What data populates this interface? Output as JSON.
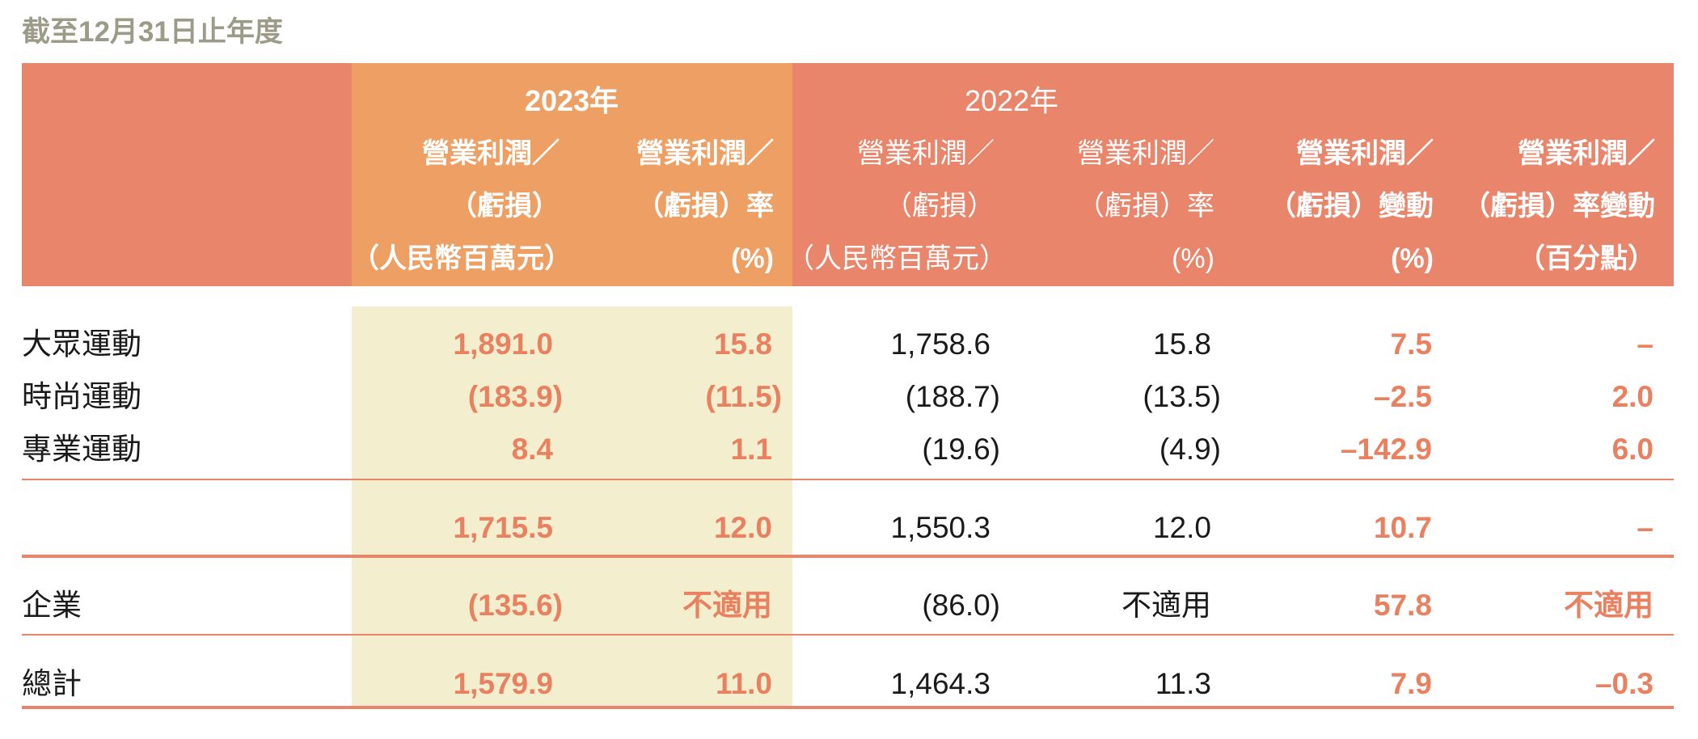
{
  "title": "截至12月31日止年度",
  "colors": {
    "header": "#E8856A",
    "header_2023": "#EE9F63",
    "highlight_2023": "#F2EECE",
    "accent_text": "#E9805F",
    "title": "#9C9B88"
  },
  "header": {
    "years": [
      "2023年",
      "2022年"
    ],
    "columns": [
      {
        "lines": [
          "營業利潤／",
          "（虧損）",
          "（人民幣百萬元）"
        ]
      },
      {
        "lines": [
          "營業利潤／",
          "（虧損）率",
          "(%)"
        ]
      },
      {
        "lines": [
          "營業利潤／",
          "（虧損）",
          "（人民幣百萬元）"
        ]
      },
      {
        "lines": [
          "營業利潤／",
          "（虧損）率",
          "(%)"
        ]
      },
      {
        "lines": [
          "營業利潤／",
          "（虧損）變動",
          "(%)"
        ]
      },
      {
        "lines": [
          "營業利潤／",
          "（虧損）率變動",
          "（百分點）"
        ]
      }
    ]
  },
  "rows": [
    {
      "label": "大眾運動",
      "values": [
        "1,891.0",
        "15.8",
        "1,758.6",
        "15.8",
        "7.5",
        "–"
      ]
    },
    {
      "label": "時尚運動",
      "values": [
        "(183.9)",
        "(11.5)",
        "(188.7)",
        "(13.5)",
        "–2.5",
        "2.0"
      ]
    },
    {
      "label": "專業運動",
      "values": [
        "8.4",
        "1.1",
        "(19.6)",
        "(4.9)",
        "–142.9",
        "6.0"
      ]
    },
    {
      "values": [
        "1,715.5",
        "12.0",
        "1,550.3",
        "12.0",
        "10.7",
        "–"
      ]
    },
    {
      "label": "企業",
      "values": [
        "(135.6)",
        "不適用",
        "(86.0)",
        "不適用",
        "57.8",
        "不適用"
      ]
    },
    {
      "label": "總計",
      "values": [
        "1,579.9",
        "11.0",
        "1,464.3",
        "11.3",
        "7.9",
        "–0.3"
      ]
    }
  ]
}
